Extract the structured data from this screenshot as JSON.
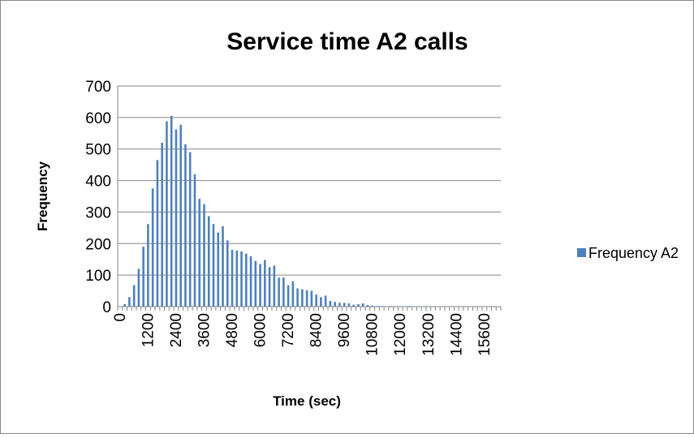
{
  "chart_data": {
    "type": "bar",
    "title": "Service time A2 calls",
    "x_label": "Time (sec)",
    "y_label": "Frequency",
    "categories": [
      0,
      null,
      null,
      null,
      null,
      null,
      1200,
      null,
      null,
      null,
      null,
      null,
      2400,
      null,
      null,
      null,
      null,
      null,
      3600,
      null,
      null,
      null,
      null,
      null,
      4800,
      null,
      null,
      null,
      null,
      null,
      6000,
      null,
      null,
      null,
      null,
      null,
      7200,
      null,
      null,
      null,
      null,
      null,
      8400,
      null,
      null,
      null,
      null,
      null,
      9600,
      null,
      null,
      null,
      null,
      null,
      10800,
      null,
      null,
      null,
      null,
      null,
      12000,
      null,
      null,
      null,
      null,
      null,
      13200,
      null,
      null,
      null,
      null,
      null,
      14400,
      null,
      null,
      null,
      null,
      null,
      15600,
      null,
      null,
      null
    ],
    "series": [
      {
        "name": "Frequency A2",
        "color": "#4f81bd",
        "values": [
          0,
          8,
          30,
          68,
          120,
          190,
          262,
          375,
          465,
          520,
          588,
          605,
          562,
          577,
          515,
          490,
          420,
          342,
          325,
          287,
          262,
          235,
          255,
          210,
          180,
          178,
          175,
          168,
          160,
          145,
          135,
          148,
          125,
          130,
          92,
          92,
          68,
          80,
          58,
          55,
          52,
          50,
          38,
          30,
          35,
          18,
          15,
          12,
          12,
          10,
          6,
          8,
          10,
          5,
          3,
          2,
          2,
          1,
          2,
          1,
          1,
          1,
          2,
          1,
          1,
          1,
          1,
          0,
          1,
          1,
          0,
          1,
          0,
          0,
          1,
          0,
          0,
          0,
          0,
          0,
          1,
          0
        ]
      }
    ],
    "ylim": [
      0,
      700
    ],
    "yticks": [
      0,
      100,
      200,
      300,
      400,
      500,
      600,
      700
    ],
    "grid": true,
    "legend": "right"
  }
}
